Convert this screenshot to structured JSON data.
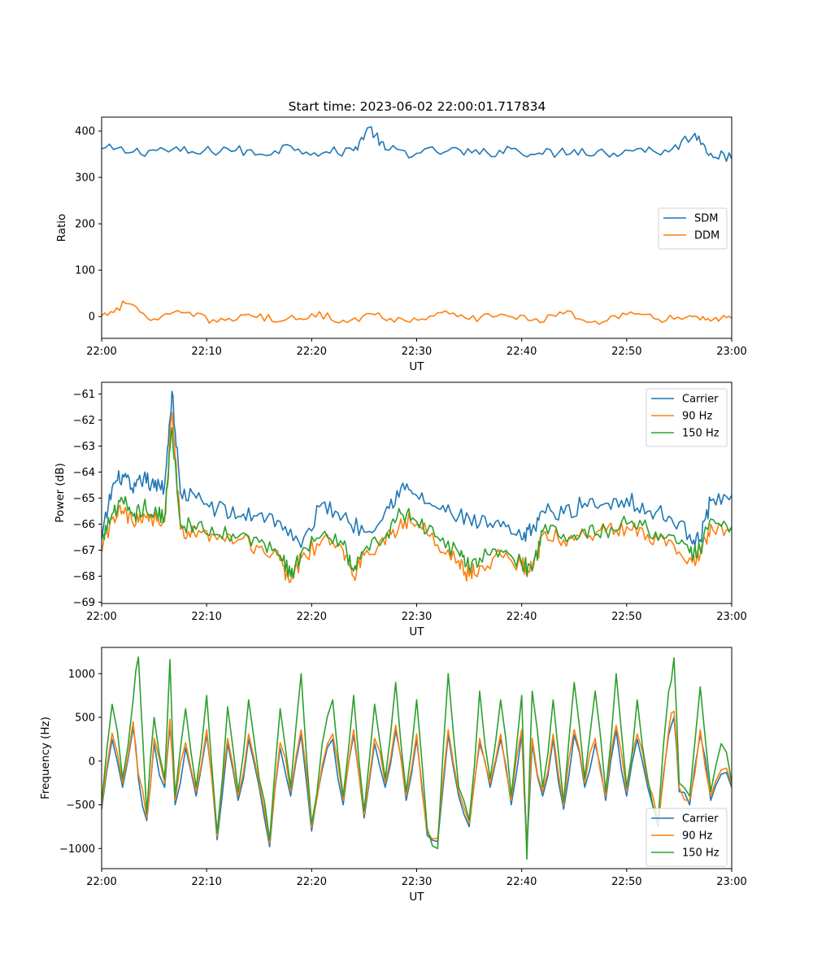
{
  "figure": {
    "title": "Start time: 2023-06-02 22:00:01.717834"
  },
  "chart_data": [
    {
      "type": "line",
      "xlabel": "UT",
      "ylabel": "Ratio",
      "x_range": [
        "22:00",
        "23:00"
      ],
      "x_ticks": [
        "22:00",
        "22:10",
        "22:20",
        "22:30",
        "22:40",
        "22:50",
        "23:00"
      ],
      "ylim": [
        -47,
        430
      ],
      "y_ticks": [
        0,
        100,
        200,
        300,
        400
      ],
      "legend_position": "center-right",
      "series": [
        {
          "name": "SDM",
          "color": "#1f77b4",
          "x": [
            "22:00",
            "22:03",
            "22:06",
            "22:09",
            "22:12",
            "22:15",
            "22:18",
            "22:21",
            "22:24",
            "22:25.5",
            "22:27",
            "22:30",
            "22:33",
            "22:36",
            "22:39",
            "22:42",
            "22:45",
            "22:48",
            "22:51",
            "22:54",
            "22:56.5",
            "22:58",
            "23:00"
          ],
          "values": [
            362,
            355,
            360,
            352,
            362,
            350,
            368,
            352,
            358,
            408,
            360,
            352,
            358,
            350,
            362,
            350,
            360,
            352,
            362,
            355,
            395,
            352,
            340
          ]
        },
        {
          "name": "DDM",
          "color": "#ff7f0e",
          "x": [
            "22:00",
            "22:02.3",
            "22:05",
            "22:08",
            "22:11",
            "22:14",
            "22:17",
            "22:20",
            "22:23",
            "22:26",
            "22:29",
            "22:32",
            "22:35",
            "22:38",
            "22:41",
            "22:44",
            "22:47",
            "22:50",
            "22:53",
            "22:56",
            "22:58",
            "23:00"
          ],
          "values": [
            2,
            28,
            -5,
            8,
            -12,
            5,
            -10,
            6,
            -8,
            4,
            -10,
            8,
            -6,
            5,
            -8,
            6,
            -10,
            4,
            -6,
            2,
            -10,
            -4
          ]
        }
      ]
    },
    {
      "type": "line",
      "xlabel": "UT",
      "ylabel": "Power (dB)",
      "x_range": [
        "22:00",
        "23:00"
      ],
      "x_ticks": [
        "22:00",
        "22:10",
        "22:20",
        "22:30",
        "22:40",
        "22:50",
        "23:00"
      ],
      "ylim": [
        -69.05,
        -60.55
      ],
      "y_ticks": [
        -69,
        -68,
        -67,
        -66,
        -65,
        -64,
        -63,
        -62,
        -61
      ],
      "legend_position": "upper-right",
      "series": [
        {
          "name": "Carrier",
          "color": "#1f77b4",
          "x": [
            "22:00",
            "22:01",
            "22:02",
            "22:03",
            "22:04",
            "22:05",
            "22:06",
            "22:06.7",
            "22:07.5",
            "22:09",
            "22:11",
            "22:13",
            "22:15",
            "22:17",
            "22:19",
            "22:21",
            "22:23",
            "22:25",
            "22:27",
            "22:28.5",
            "22:30",
            "22:32",
            "22:34",
            "22:36",
            "22:38",
            "22:40",
            "22:41",
            "22:42",
            "22:44",
            "22:46",
            "22:48",
            "22:50",
            "22:52",
            "22:54",
            "22:56",
            "22:57",
            "22:58",
            "23:00"
          ],
          "values": [
            -66.6,
            -64.6,
            -64.1,
            -64.8,
            -64.2,
            -64.6,
            -64.5,
            -60.9,
            -64.8,
            -65.0,
            -65.4,
            -65.7,
            -65.6,
            -65.9,
            -66.9,
            -65.2,
            -65.7,
            -66.3,
            -65.5,
            -64.6,
            -64.9,
            -65.4,
            -65.7,
            -66.0,
            -66.1,
            -66.6,
            -66.2,
            -65.5,
            -65.6,
            -65.2,
            -65.2,
            -65.0,
            -65.5,
            -65.7,
            -66.4,
            -66.6,
            -65.1,
            -64.9
          ]
        },
        {
          "name": "90 Hz",
          "color": "#ff7f0e",
          "x": [
            "22:00",
            "22:01",
            "22:02",
            "22:03",
            "22:04",
            "22:05",
            "22:06",
            "22:06.7",
            "22:07.5",
            "22:09",
            "22:11",
            "22:13",
            "22:15",
            "22:17",
            "22:18",
            "22:19",
            "22:21",
            "22:23",
            "22:24",
            "22:25",
            "22:27",
            "22:28.5",
            "22:30",
            "22:32",
            "22:34",
            "22:35",
            "22:36",
            "22:38",
            "22:40",
            "22:41",
            "22:42",
            "22:44",
            "22:46",
            "22:48",
            "22:50",
            "22:52",
            "22:54",
            "22:56",
            "22:57",
            "22:58",
            "23:00"
          ],
          "values": [
            -67.1,
            -65.8,
            -65.5,
            -66.0,
            -65.6,
            -65.8,
            -65.9,
            -61.7,
            -66.2,
            -66.5,
            -66.6,
            -66.6,
            -66.9,
            -67.4,
            -68.2,
            -67.3,
            -66.6,
            -67.0,
            -68.0,
            -67.2,
            -66.8,
            -65.8,
            -66.0,
            -66.8,
            -67.4,
            -68.0,
            -67.6,
            -67.2,
            -67.6,
            -67.8,
            -66.4,
            -66.6,
            -66.4,
            -66.3,
            -66.1,
            -66.4,
            -66.6,
            -67.3,
            -67.2,
            -66.0,
            -66.2
          ]
        },
        {
          "name": "150 Hz",
          "color": "#2ca02c",
          "x": [
            "22:00",
            "22:01",
            "22:02",
            "22:03",
            "22:04",
            "22:05",
            "22:06",
            "22:06.7",
            "22:07.5",
            "22:09",
            "22:11",
            "22:13",
            "22:15",
            "22:17",
            "22:18",
            "22:19",
            "22:21",
            "22:23",
            "22:24",
            "22:25",
            "22:27",
            "22:28.5",
            "22:30",
            "22:32",
            "22:34",
            "22:35",
            "22:36",
            "22:38",
            "22:40",
            "22:41",
            "22:42",
            "22:44",
            "22:46",
            "22:48",
            "22:50",
            "22:52",
            "22:54",
            "22:56",
            "22:57",
            "22:58",
            "23:00"
          ],
          "values": [
            -66.6,
            -65.6,
            -65.1,
            -65.7,
            -65.3,
            -65.6,
            -65.7,
            -62.3,
            -66.0,
            -66.2,
            -66.4,
            -66.5,
            -66.7,
            -67.2,
            -68.0,
            -67.1,
            -66.4,
            -66.8,
            -67.8,
            -67.0,
            -66.5,
            -65.6,
            -65.9,
            -66.5,
            -67.1,
            -67.7,
            -67.3,
            -67.0,
            -67.5,
            -67.8,
            -66.3,
            -66.4,
            -66.2,
            -66.2,
            -66.0,
            -66.2,
            -66.4,
            -67.1,
            -67.0,
            -65.8,
            -66.1
          ]
        }
      ]
    },
    {
      "type": "line",
      "xlabel": "UT",
      "ylabel": "Frequency (Hz)",
      "x_range": [
        "22:00",
        "23:00"
      ],
      "x_ticks": [
        "22:00",
        "22:10",
        "22:20",
        "22:30",
        "22:40",
        "22:50",
        "23:00"
      ],
      "ylim": [
        -1230,
        1300
      ],
      "y_ticks": [
        -1000,
        -500,
        0,
        500,
        1000
      ],
      "legend_position": "lower-right",
      "series": [
        {
          "name": "Carrier",
          "color": "#1f77b4",
          "x": [
            "22:00",
            "22:01",
            "22:02",
            "22:03",
            "22:03.5",
            "22:04.3",
            "22:05",
            "22:06",
            "22:06.5",
            "22:07",
            "22:08",
            "22:09",
            "22:10",
            "22:11",
            "22:12",
            "22:13",
            "22:14",
            "22:15",
            "22:16",
            "22:17",
            "22:18",
            "22:19",
            "22:20",
            "22:21",
            "22:22",
            "22:23",
            "22:24",
            "22:25",
            "22:26",
            "22:27",
            "22:28",
            "22:29",
            "22:30",
            "22:31",
            "22:32",
            "22:33",
            "22:34",
            "22:35",
            "22:36",
            "22:37",
            "22:38",
            "22:39",
            "22:40",
            "22:40.5",
            "22:41",
            "22:42",
            "22:43",
            "22:44",
            "22:45",
            "22:46",
            "22:47",
            "22:48",
            "22:49",
            "22:50",
            "22:51",
            "22:52",
            "22:53",
            "22:54",
            "22:54.5",
            "22:55",
            "22:56",
            "22:57",
            "22:58",
            "22:59",
            "23:00"
          ],
          "values": [
            -550,
            250,
            -300,
            380,
            -200,
            -680,
            200,
            -300,
            400,
            -500,
            150,
            -400,
            300,
            -900,
            200,
            -450,
            250,
            -300,
            -980,
            150,
            -400,
            300,
            -800,
            -100,
            250,
            -500,
            300,
            -650,
            200,
            -300,
            350,
            -450,
            250,
            -850,
            -920,
            300,
            -400,
            -750,
            200,
            -300,
            250,
            -500,
            300,
            -980,
            200,
            -400,
            250,
            -550,
            300,
            -300,
            200,
            -450,
            350,
            -400,
            250,
            -300,
            -750,
            300,
            500,
            -350,
            -500,
            300,
            -450,
            -150,
            -300
          ]
        },
        {
          "name": "90 Hz",
          "color": "#ff7f0e",
          "x": [
            "22:00",
            "22:01",
            "22:02",
            "22:03",
            "22:03.5",
            "22:04.3",
            "22:05",
            "22:06",
            "22:06.5",
            "22:07",
            "22:08",
            "22:09",
            "22:10",
            "22:11",
            "22:12",
            "22:13",
            "22:14",
            "22:15",
            "22:16",
            "22:17",
            "22:18",
            "22:19",
            "22:20",
            "22:21",
            "22:22",
            "22:23",
            "22:24",
            "22:25",
            "22:26",
            "22:27",
            "22:28",
            "22:29",
            "22:30",
            "22:31",
            "22:32",
            "22:33",
            "22:34",
            "22:35",
            "22:36",
            "22:37",
            "22:38",
            "22:39",
            "22:40",
            "22:40.5",
            "22:41",
            "22:42",
            "22:43",
            "22:44",
            "22:45",
            "22:46",
            "22:47",
            "22:48",
            "22:49",
            "22:50",
            "22:51",
            "22:52",
            "22:53",
            "22:54",
            "22:54.5",
            "22:55",
            "22:56",
            "22:57",
            "22:58",
            "22:59",
            "23:00"
          ],
          "values": [
            -520,
            320,
            -250,
            450,
            -150,
            -650,
            260,
            -250,
            480,
            -450,
            210,
            -350,
            360,
            -860,
            260,
            -400,
            310,
            -250,
            -940,
            210,
            -350,
            360,
            -760,
            -50,
            310,
            -450,
            360,
            -610,
            260,
            -250,
            410,
            -400,
            310,
            -810,
            -880,
            360,
            -350,
            -710,
            260,
            -250,
            310,
            -450,
            360,
            -940,
            260,
            -350,
            310,
            -510,
            360,
            -250,
            260,
            -400,
            410,
            -350,
            310,
            -250,
            -710,
            360,
            570,
            -300,
            -450,
            360,
            -400,
            -100,
            -260
          ]
        },
        {
          "name": "150 Hz",
          "color": "#2ca02c",
          "x": [
            "22:00",
            "22:01",
            "22:02",
            "22:03",
            "22:03.5",
            "22:04.3",
            "22:05",
            "22:06",
            "22:06.5",
            "22:07",
            "22:08",
            "22:09",
            "22:10",
            "22:11",
            "22:12",
            "22:13",
            "22:14",
            "22:15",
            "22:16",
            "22:17",
            "22:18",
            "22:19",
            "22:20",
            "22:21",
            "22:22",
            "22:23",
            "22:24",
            "22:25",
            "22:26",
            "22:27",
            "22:28",
            "22:29",
            "22:30",
            "22:31",
            "22:32",
            "22:33",
            "22:34",
            "22:35",
            "22:36",
            "22:37",
            "22:38",
            "22:39",
            "22:40",
            "22:40.5",
            "22:41",
            "22:42",
            "22:43",
            "22:44",
            "22:45",
            "22:46",
            "22:47",
            "22:48",
            "22:49",
            "22:50",
            "22:51",
            "22:52",
            "22:53",
            "22:54",
            "22:54.5",
            "22:55",
            "22:56",
            "22:57",
            "22:58",
            "22:59",
            "23:00"
          ],
          "values": [
            -480,
            650,
            -200,
            700,
            1190,
            -600,
            500,
            -200,
            1160,
            -400,
            600,
            -300,
            750,
            -820,
            620,
            -350,
            700,
            -200,
            -900,
            600,
            -300,
            1000,
            -720,
            200,
            700,
            -400,
            750,
            -570,
            650,
            -200,
            900,
            -350,
            700,
            -770,
            -1000,
            1000,
            -300,
            -670,
            800,
            -200,
            700,
            -400,
            750,
            -1120,
            800,
            -300,
            700,
            -470,
            900,
            -200,
            800,
            -350,
            1000,
            -300,
            700,
            -200,
            -670,
            800,
            1180,
            -250,
            -400,
            850,
            -350,
            200,
            -240
          ]
        }
      ]
    }
  ]
}
